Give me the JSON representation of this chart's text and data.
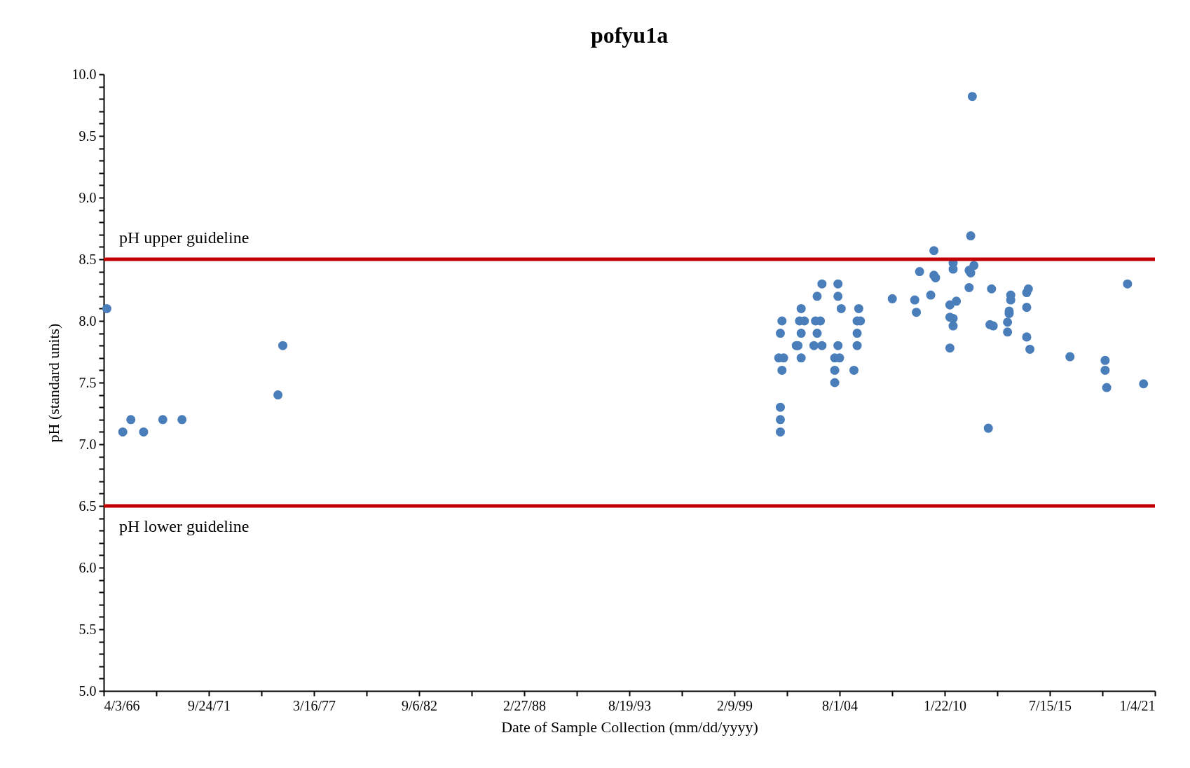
{
  "chart_data": {
    "type": "scatter",
    "title": "pofyu1a",
    "xlabel": "Date of Sample Collection (mm/dd/yyyy)",
    "ylabel": "pH (standard units)",
    "x": [
      "1966-06",
      "1967-04",
      "1967-09",
      "1968-05",
      "1969-05",
      "1970-05",
      "1975-05",
      "1975-08",
      "2001-06",
      "2001-07",
      "2001-07",
      "2001-07",
      "2001-07",
      "2001-08",
      "2001-08",
      "2001-09",
      "2002-05",
      "2002-06",
      "2002-07",
      "2002-08",
      "2002-08",
      "2002-08",
      "2002-10",
      "2003-04",
      "2003-05",
      "2003-06",
      "2003-06",
      "2003-08",
      "2003-09",
      "2003-09",
      "2004-05",
      "2004-05",
      "2004-05",
      "2004-07",
      "2004-07",
      "2004-07",
      "2004-08",
      "2004-09",
      "2005-05",
      "2005-07",
      "2005-07",
      "2005-07",
      "2005-08",
      "2005-09",
      "2007-05",
      "2008-07",
      "2008-08",
      "2008-10",
      "2009-05",
      "2009-07",
      "2009-07",
      "2009-08",
      "2010-05",
      "2010-05",
      "2010-05",
      "2010-07",
      "2010-07",
      "2010-07",
      "2010-07",
      "2010-09",
      "2011-05",
      "2011-05",
      "2011-06",
      "2011-06",
      "2011-07",
      "2011-08",
      "2012-05",
      "2012-06",
      "2012-07",
      "2012-08",
      "2013-05",
      "2013-05",
      "2013-06",
      "2013-06",
      "2013-07",
      "2013-07",
      "2014-05",
      "2014-05",
      "2014-05",
      "2014-06",
      "2014-07",
      "2016-08",
      "2018-06",
      "2018-06",
      "2018-07",
      "2019-08",
      "2020-06"
    ],
    "values": [
      8.1,
      7.1,
      7.2,
      7.1,
      7.2,
      7.2,
      7.4,
      7.8,
      7.7,
      7.3,
      7.2,
      7.1,
      7.9,
      8.0,
      7.6,
      7.7,
      7.8,
      7.8,
      8.0,
      8.1,
      7.9,
      7.7,
      8.0,
      7.8,
      8.0,
      7.9,
      8.2,
      8.0,
      8.3,
      7.8,
      7.7,
      7.6,
      7.5,
      8.3,
      8.2,
      7.8,
      7.7,
      8.1,
      7.6,
      7.9,
      7.8,
      8.0,
      8.1,
      8.0,
      8.18,
      8.17,
      8.07,
      8.4,
      8.21,
      8.57,
      8.37,
      8.35,
      8.13,
      8.03,
      7.78,
      7.96,
      8.42,
      8.02,
      8.47,
      8.16,
      8.27,
      8.41,
      8.69,
      8.39,
      9.82,
      8.45,
      7.13,
      7.97,
      8.26,
      7.96,
      7.91,
      7.99,
      8.08,
      8.06,
      8.21,
      8.17,
      8.11,
      7.87,
      8.23,
      8.26,
      7.77,
      7.71,
      7.68,
      7.6,
      7.46,
      8.3,
      7.49
    ],
    "color": "#4a7ebb",
    "marker": "circle",
    "grid": false,
    "xlim": [
      "1966-04-03",
      "2021-01-04"
    ],
    "xticks": [
      {
        "value": "1966-04-03",
        "label": "4/3/66"
      },
      {
        "value": "1968-12-28",
        "label": null
      },
      {
        "value": "1971-09-24",
        "label": "9/24/71"
      },
      {
        "value": "1974-06-20",
        "label": null
      },
      {
        "value": "1977-03-16",
        "label": "3/16/77"
      },
      {
        "value": "1979-12-11",
        "label": null
      },
      {
        "value": "1982-09-06",
        "label": "9/6/82"
      },
      {
        "value": "1985-06-02",
        "label": null
      },
      {
        "value": "1988-02-27",
        "label": "2/27/88"
      },
      {
        "value": "1990-11-23",
        "label": null
      },
      {
        "value": "1993-08-19",
        "label": "8/19/93"
      },
      {
        "value": "1996-05-15",
        "label": null
      },
      {
        "value": "1999-02-09",
        "label": "2/9/99"
      },
      {
        "value": "2001-11-05",
        "label": null
      },
      {
        "value": "2004-08-01",
        "label": "8/1/04"
      },
      {
        "value": "2007-04-28",
        "label": null
      },
      {
        "value": "2010-01-22",
        "label": "1/22/10"
      },
      {
        "value": "2012-10-18",
        "label": null
      },
      {
        "value": "2015-07-15",
        "label": "7/15/15"
      },
      {
        "value": "2018-04-10",
        "label": null
      },
      {
        "value": "2021-01-04",
        "label": "1/4/21"
      }
    ],
    "ylim": [
      5,
      10
    ],
    "yticks": [
      {
        "value": 5,
        "label": "5.0"
      },
      {
        "value": 5.1,
        "label": null
      },
      {
        "value": 5.2,
        "label": null
      },
      {
        "value": 5.3,
        "label": null
      },
      {
        "value": 5.4,
        "label": null
      },
      {
        "value": 5.5,
        "label": "5.5"
      },
      {
        "value": 5.6,
        "label": null
      },
      {
        "value": 5.7,
        "label": null
      },
      {
        "value": 5.8,
        "label": null
      },
      {
        "value": 5.9,
        "label": null
      },
      {
        "value": 6,
        "label": "6.0"
      },
      {
        "value": 6.1,
        "label": null
      },
      {
        "value": 6.2,
        "label": null
      },
      {
        "value": 6.3,
        "label": null
      },
      {
        "value": 6.4,
        "label": null
      },
      {
        "value": 6.5,
        "label": "6.5"
      },
      {
        "value": 6.6,
        "label": null
      },
      {
        "value": 6.7,
        "label": null
      },
      {
        "value": 6.8,
        "label": null
      },
      {
        "value": 6.9,
        "label": null
      },
      {
        "value": 7,
        "label": "7.0"
      },
      {
        "value": 7.1,
        "label": null
      },
      {
        "value": 7.2,
        "label": null
      },
      {
        "value": 7.3,
        "label": null
      },
      {
        "value": 7.4,
        "label": null
      },
      {
        "value": 7.5,
        "label": "7.5"
      },
      {
        "value": 7.6,
        "label": null
      },
      {
        "value": 7.7,
        "label": null
      },
      {
        "value": 7.8,
        "label": null
      },
      {
        "value": 7.9,
        "label": null
      },
      {
        "value": 8,
        "label": "8.0"
      },
      {
        "value": 8.1,
        "label": null
      },
      {
        "value": 8.2,
        "label": null
      },
      {
        "value": 8.3,
        "label": null
      },
      {
        "value": 8.4,
        "label": null
      },
      {
        "value": 8.5,
        "label": "8.5"
      },
      {
        "value": 8.6,
        "label": null
      },
      {
        "value": 8.7,
        "label": null
      },
      {
        "value": 8.8,
        "label": null
      },
      {
        "value": 8.9,
        "label": null
      },
      {
        "value": 9,
        "label": "9.0"
      },
      {
        "value": 9.1,
        "label": null
      },
      {
        "value": 9.2,
        "label": null
      },
      {
        "value": 9.3,
        "label": null
      },
      {
        "value": 9.4,
        "label": null
      },
      {
        "value": 9.5,
        "label": "9.5"
      },
      {
        "value": 9.6,
        "label": null
      },
      {
        "value": 9.7,
        "label": null
      },
      {
        "value": 9.8,
        "label": null
      },
      {
        "value": 9.9,
        "label": null
      },
      {
        "value": 10,
        "label": "10.0"
      }
    ],
    "ref_lines": [
      {
        "axis": "y",
        "value": 8.5,
        "label": "pH upper guideline",
        "color": "#c00000"
      },
      {
        "axis": "y",
        "value": 6.5,
        "label": "pH lower guideline",
        "color": "#c00000"
      }
    ]
  }
}
